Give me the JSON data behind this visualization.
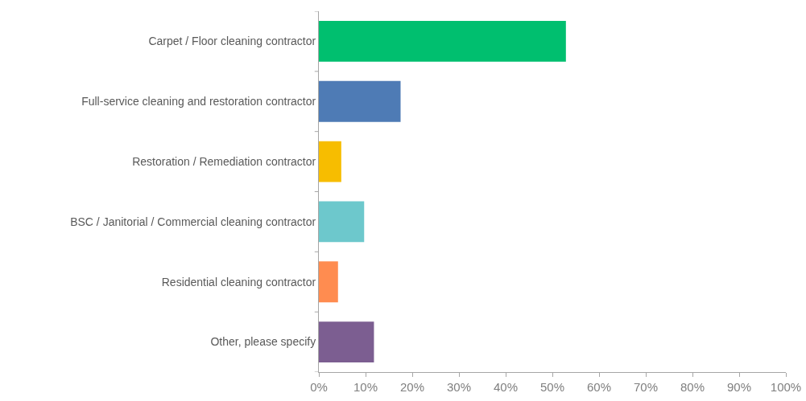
{
  "chart_data": {
    "type": "bar",
    "orientation": "horizontal",
    "categories": [
      "Carpet / Floor cleaning contractor",
      "Full-service cleaning and restoration contractor",
      "Restoration / Remediation contractor",
      "BSC / Janitorial / Commercial cleaning contractor",
      "Residential cleaning contractor",
      "Other, please specify"
    ],
    "values": [
      52.9,
      17.5,
      4.8,
      9.7,
      4.1,
      11.8
    ],
    "colors": [
      "#00bf6f",
      "#4e7bb5",
      "#f7bd00",
      "#6dc8cc",
      "#ff8c50",
      "#7c5e91"
    ],
    "xlim": [
      0,
      100
    ],
    "xticks": [
      {
        "value": 0,
        "label": "0%"
      },
      {
        "value": 10,
        "label": "10%"
      },
      {
        "value": 20,
        "label": "20%"
      },
      {
        "value": 30,
        "label": "30%"
      },
      {
        "value": 40,
        "label": "40%"
      },
      {
        "value": 50,
        "label": "50%"
      },
      {
        "value": 60,
        "label": "60%"
      },
      {
        "value": 70,
        "label": "70%"
      },
      {
        "value": 80,
        "label": "80%"
      },
      {
        "value": 90,
        "label": "90%"
      },
      {
        "value": 100,
        "label": "100%"
      }
    ],
    "grid": false
  }
}
